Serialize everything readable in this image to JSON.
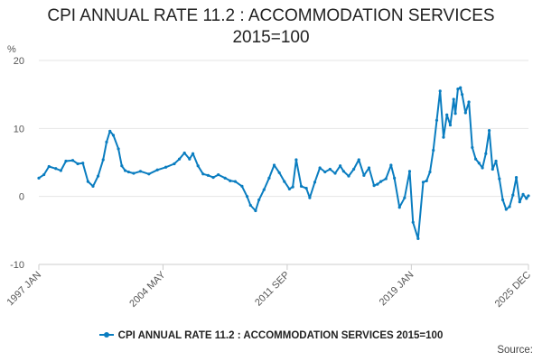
{
  "chart_data": {
    "type": "line",
    "title_line1": "CPI ANNUAL RATE 11.2 : ACCOMMODATION SERVICES",
    "title_line2": "2015=100",
    "ylabel": "%",
    "ylim": [
      -10,
      20
    ],
    "yticks": [
      -10,
      0,
      10,
      20
    ],
    "xlim": [
      1997.0,
      2025.917
    ],
    "xticks": [
      {
        "label": "1997 JAN",
        "value": 1997.0
      },
      {
        "label": "2004 MAY",
        "value": 2004.333
      },
      {
        "label": "2011 SEP",
        "value": 2011.667
      },
      {
        "label": "2019 JAN",
        "value": 2019.0
      },
      {
        "label": "2025 DEC",
        "value": 2025.917
      }
    ],
    "grid": "horizontal",
    "legend_position": "bottom",
    "color": "#0a7dc0",
    "series": [
      {
        "name": "CPI ANNUAL RATE 11.2 : ACCOMMODATION SERVICES 2015=100",
        "x": [
          1997.0,
          1997.3,
          1997.6,
          1998.0,
          1998.3,
          1998.6,
          1999.0,
          1999.3,
          1999.6,
          1999.9,
          2000.2,
          2000.5,
          2000.8,
          2001.0,
          2001.2,
          2001.4,
          2001.7,
          2001.9,
          2002.1,
          2002.3,
          2002.6,
          2003.0,
          2003.5,
          2004.0,
          2004.5,
          2005.0,
          2005.3,
          2005.6,
          2005.9,
          2006.1,
          2006.4,
          2006.7,
          2007.0,
          2007.3,
          2007.6,
          2008.0,
          2008.3,
          2008.6,
          2009.0,
          2009.3,
          2009.5,
          2009.8,
          2010.0,
          2010.3,
          2010.6,
          2010.9,
          2011.2,
          2011.5,
          2011.8,
          2012.0,
          2012.2,
          2012.5,
          2012.8,
          2013.0,
          2013.3,
          2013.6,
          2013.9,
          2014.2,
          2014.5,
          2014.8,
          2015.0,
          2015.3,
          2015.6,
          2015.9,
          2016.2,
          2016.5,
          2016.8,
          2017.0,
          2017.2,
          2017.5,
          2017.8,
          2018.0,
          2018.3,
          2018.6,
          2018.9,
          2019.1,
          2019.4,
          2019.7,
          2019.9,
          2020.1,
          2020.3,
          2020.5,
          2020.7,
          2020.9,
          2021.1,
          2021.3,
          2021.5,
          2021.6,
          2021.75,
          2021.9,
          2022.0,
          2022.2,
          2022.4,
          2022.6,
          2022.8,
          2023.0,
          2023.2,
          2023.4,
          2023.6,
          2023.8,
          2024.0,
          2024.2,
          2024.4,
          2024.6,
          2024.8,
          2025.0,
          2025.2,
          2025.4,
          2025.6,
          2025.8,
          2025.917
        ],
        "values": [
          2.7,
          3.2,
          4.4,
          4.1,
          3.8,
          5.2,
          5.3,
          4.8,
          4.9,
          2.2,
          1.5,
          3.0,
          5.4,
          8.0,
          9.6,
          9.0,
          7.0,
          4.5,
          3.8,
          3.6,
          3.4,
          3.7,
          3.3,
          3.9,
          4.3,
          4.8,
          5.5,
          6.4,
          5.5,
          6.3,
          4.5,
          3.3,
          3.1,
          2.8,
          3.2,
          2.7,
          2.3,
          2.2,
          1.5,
          0.0,
          -1.3,
          -2.1,
          -0.5,
          1.0,
          2.7,
          4.6,
          3.5,
          2.2,
          1.1,
          1.4,
          5.4,
          1.5,
          1.2,
          -0.2,
          2.1,
          4.2,
          3.6,
          4.0,
          3.4,
          4.5,
          3.7,
          3.0,
          4.0,
          5.4,
          3.1,
          4.2,
          1.6,
          1.8,
          2.2,
          2.6,
          4.6,
          2.7,
          -1.6,
          -0.2,
          3.7,
          -3.8,
          -6.2,
          2.1,
          2.3,
          3.6,
          6.8,
          11.2,
          15.5,
          8.7,
          12.0,
          10.5,
          14.3,
          12.2,
          15.8,
          16.0,
          15.0,
          12.3,
          13.9,
          7.2,
          5.5,
          4.9,
          4.2,
          6.3,
          9.7,
          4.0,
          5.2,
          2.6,
          -0.5,
          -1.9,
          -1.5,
          0.2,
          2.8,
          -0.8,
          0.3,
          -0.3,
          0.1
        ]
      }
    ]
  },
  "legend": {
    "label": "CPI ANNUAL RATE 11.2 : ACCOMMODATION SERVICES 2015=100"
  },
  "source": {
    "label": "Source:"
  }
}
